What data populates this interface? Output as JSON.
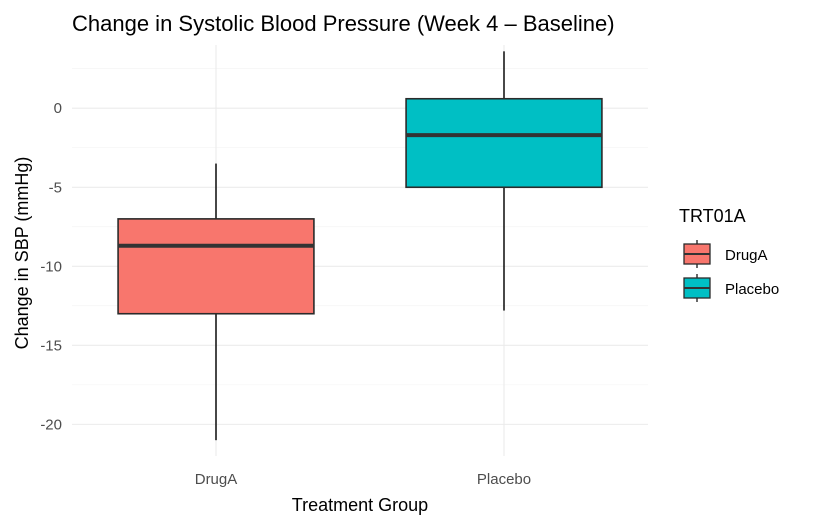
{
  "chart_data": {
    "type": "box",
    "title": "Change in Systolic Blood Pressure (Week 4 – Baseline)",
    "xlabel": "Treatment Group",
    "ylabel": "Change in SBP (mmHg)",
    "categories": [
      "DrugA",
      "Placebo"
    ],
    "ylim": [
      -22,
      4
    ],
    "yticks": [
      0,
      -5,
      -10,
      -15,
      -20
    ],
    "ytick_labels": [
      "0",
      "-5",
      "-10",
      "-15",
      "-20"
    ],
    "grid": true,
    "boxes": [
      {
        "category": "DrugA",
        "whisker_low": -21.0,
        "q1": -13.0,
        "median": -8.7,
        "q3": -7.0,
        "whisker_high": -3.5,
        "fill": "#F8766D"
      },
      {
        "category": "Placebo",
        "whisker_low": -12.8,
        "q1": -5.0,
        "median": -1.7,
        "q3": 0.6,
        "whisker_high": 3.6,
        "fill": "#00BFC4"
      }
    ],
    "legend": {
      "title": "TRT01A",
      "position": "right",
      "entries": [
        {
          "label": "DrugA",
          "color": "#F8766D"
        },
        {
          "label": "Placebo",
          "color": "#00BFC4"
        }
      ]
    }
  }
}
